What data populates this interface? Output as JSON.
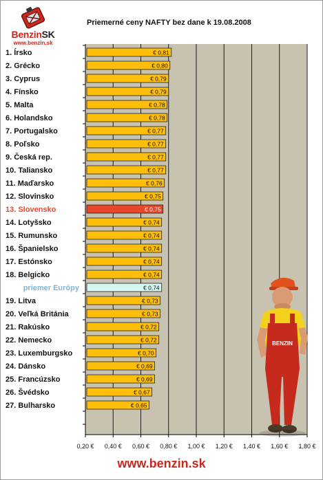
{
  "logo": {
    "name_main": "Benzin",
    "name_suffix": "SK",
    "url": "www.benzin.sk"
  },
  "footer": {
    "url": "www.benzin.sk"
  },
  "colors": {
    "plot_bg": "#c8c3b1",
    "bar": "#ffbe0a",
    "bar_highlight": "#e8472b",
    "bar_average": "#d4f7f0",
    "label_highlight": "#e8472b",
    "label_average": "#7fb3d9",
    "brand_red": "#c8281e"
  },
  "chart_data": {
    "type": "bar",
    "orientation": "horizontal",
    "title": "Priemerné ceny NAFTY bez dane k 19.08.2008",
    "xlabel": "",
    "ylabel": "",
    "xlim": [
      0.2,
      1.8
    ],
    "x_ticks": [
      0.2,
      0.4,
      0.6,
      0.8,
      1.0,
      1.2,
      1.4,
      1.6,
      1.8
    ],
    "x_tick_labels": [
      "0,20 €",
      "0,40 €",
      "0,60 €",
      "0,80 €",
      "1,00 €",
      "1,20 €",
      "1,40 €",
      "1,60 €",
      "1,80 €"
    ],
    "grid": true,
    "categories": [
      "1. Írsko",
      "2. Grécko",
      "3. Cyprus",
      "4. Fínsko",
      "5. Malta",
      "6. Holandsko",
      "7. Portugalsko",
      "8. Poľsko",
      "9. Česká rep.",
      "10. Taliansko",
      "11. Maďarsko",
      "12. Slovinsko",
      "13. Slovensko",
      "14. Lotyšsko",
      "15. Rumunsko",
      "16. Španielsko",
      "17. Estónsko",
      "18. Belgicko",
      "priemer Európy",
      "19. Litva",
      "20. Veľká Británia",
      "21. Rakúsko",
      "22. Nemecko",
      "23. Luxemburgsko",
      "24. Dánsko",
      "25. Francúzsko",
      "26. Švédsko",
      "27. Bulharsko"
    ],
    "values": [
      0.81,
      0.8,
      0.79,
      0.79,
      0.78,
      0.78,
      0.77,
      0.77,
      0.77,
      0.77,
      0.76,
      0.75,
      0.75,
      0.74,
      0.74,
      0.74,
      0.74,
      0.74,
      0.74,
      0.73,
      0.73,
      0.72,
      0.72,
      0.7,
      0.69,
      0.69,
      0.67,
      0.65
    ],
    "value_labels": [
      "€ 0,81",
      "€ 0,80",
      "€ 0,79",
      "€ 0,79",
      "€ 0,78",
      "€ 0,78",
      "€ 0,77",
      "€ 0,77",
      "€ 0,77",
      "€ 0,77",
      "€ 0,76",
      "€ 0,75",
      "€ 0,75",
      "€ 0,74",
      "€ 0,74",
      "€ 0,74",
      "€ 0,74",
      "€ 0,74",
      "€ 0,74",
      "€ 0,73",
      "€ 0,73",
      "€ 0,72",
      "€ 0,72",
      "€ 0,70",
      "€ 0,69",
      "€ 0,69",
      "€ 0,67",
      "€ 0,65"
    ],
    "highlight": "13. Slovensko",
    "average": "priemer Európy"
  }
}
